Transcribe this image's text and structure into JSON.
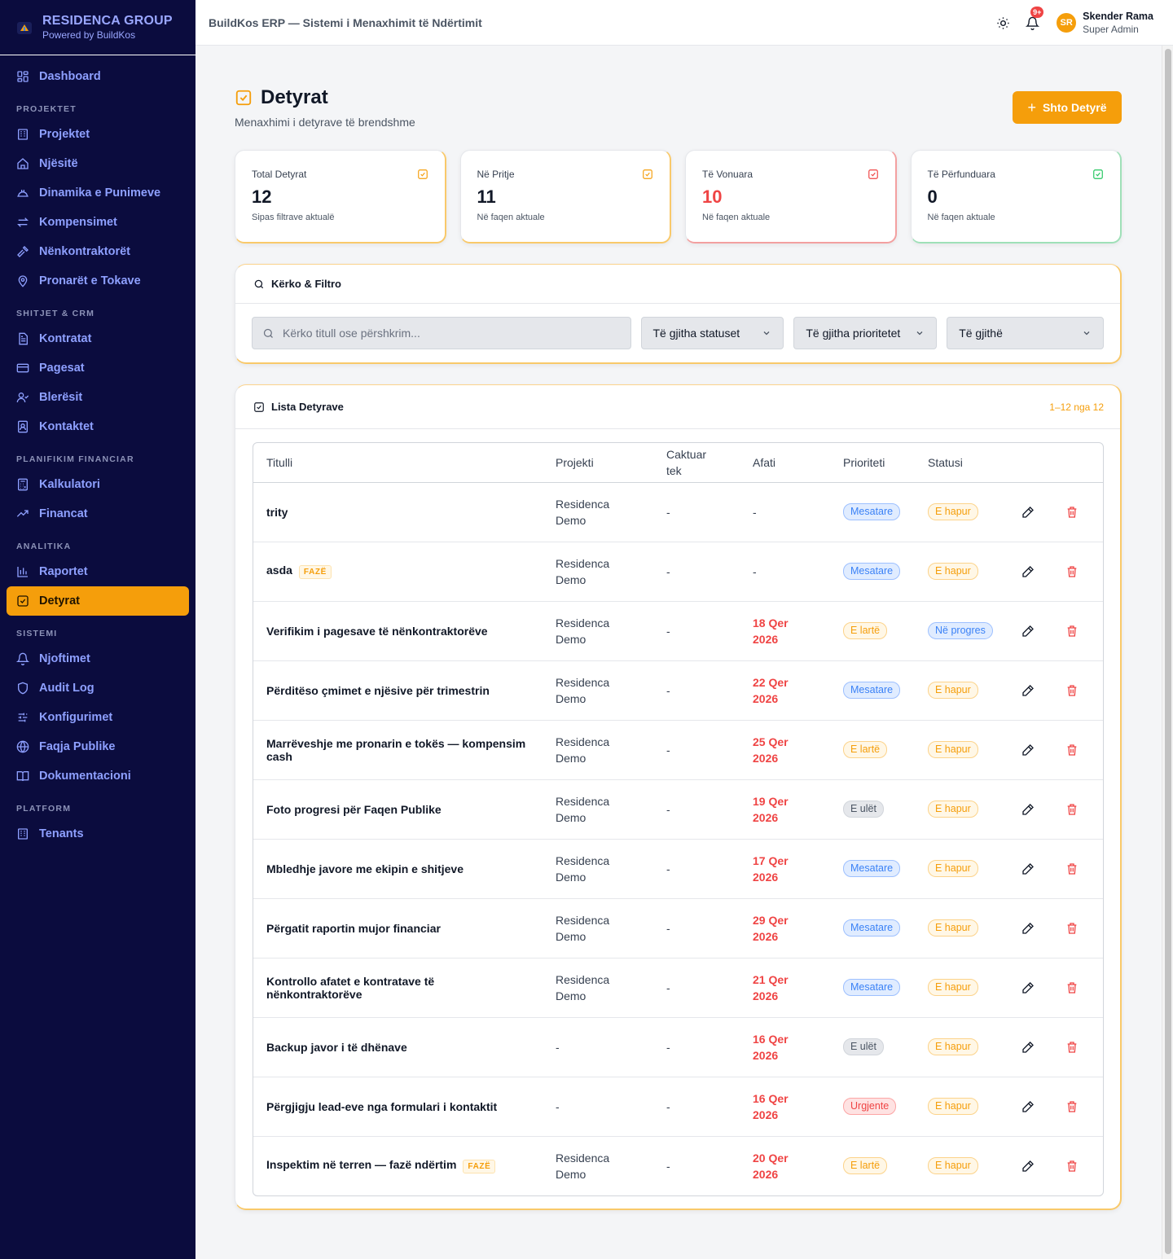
{
  "brand": {
    "name": "RESIDENCA GROUP",
    "sub": "Powered by BuildKos"
  },
  "sidebar": {
    "top": [
      {
        "label": "Dashboard",
        "icon": "grid-icon"
      }
    ],
    "sections": [
      {
        "title": "PROJEKTET",
        "items": [
          {
            "label": "Projektet",
            "icon": "building-icon"
          },
          {
            "label": "Njësitë",
            "icon": "home-icon"
          },
          {
            "label": "Dinamika e Punimeve",
            "icon": "hardhat-icon"
          },
          {
            "label": "Kompensimet",
            "icon": "arrows-icon"
          },
          {
            "label": "Nënkontraktorët",
            "icon": "hammer-icon"
          },
          {
            "label": "Pronarët e Tokave",
            "icon": "map-pin-icon"
          }
        ]
      },
      {
        "title": "SHITJET & CRM",
        "items": [
          {
            "label": "Kontratat",
            "icon": "document-icon"
          },
          {
            "label": "Pagesat",
            "icon": "card-icon"
          },
          {
            "label": "Blerësit",
            "icon": "user-check-icon"
          },
          {
            "label": "Kontaktet",
            "icon": "contact-icon"
          }
        ]
      },
      {
        "title": "PLANIFIKIM FINANCIAR",
        "items": [
          {
            "label": "Kalkulatori",
            "icon": "calculator-icon"
          },
          {
            "label": "Financat",
            "icon": "trend-icon"
          }
        ]
      },
      {
        "title": "ANALITIKA",
        "items": [
          {
            "label": "Raportet",
            "icon": "bar-chart-icon"
          },
          {
            "label": "Detyrat",
            "icon": "check-square-icon",
            "active": true
          }
        ]
      },
      {
        "title": "SISTEMI",
        "items": [
          {
            "label": "Njoftimet",
            "icon": "bell-icon"
          },
          {
            "label": "Audit Log",
            "icon": "shield-icon"
          },
          {
            "label": "Konfigurimet",
            "icon": "sliders-icon"
          },
          {
            "label": "Faqja Publike",
            "icon": "globe-icon"
          },
          {
            "label": "Dokumentacioni",
            "icon": "book-icon"
          }
        ]
      },
      {
        "title": "PLATFORM",
        "items": [
          {
            "label": "Tenants",
            "icon": "building-icon"
          }
        ]
      }
    ]
  },
  "header": {
    "title": "BuildKos ERP — Sistemi i Menaxhimit të Ndërtimit",
    "notif_count": "9+",
    "user_initials": "SR",
    "user_name": "Skender Rama",
    "user_role": "Super Admin"
  },
  "page": {
    "title": "Detyrat",
    "subtitle": "Menaxhimi i detyrave të brendshme",
    "add_button": "Shto Detyrë"
  },
  "stats": [
    {
      "label": "Total Detyrat",
      "value": "12",
      "hint": "Sipas filtrave aktualë",
      "color": "#f59e0b"
    },
    {
      "label": "Në Pritje",
      "value": "11",
      "hint": "Në faqen aktuale",
      "color": "#f59e0b"
    },
    {
      "label": "Të Vonuara",
      "value": "10",
      "hint": "Në faqen aktuale",
      "color": "#ef4444"
    },
    {
      "label": "Të Përfunduara",
      "value": "0",
      "hint": "Në faqen aktuale",
      "color": "#22c55e"
    }
  ],
  "filters": {
    "title": "Kërko & Filtro",
    "search_placeholder": "Kërko titull ose përshkrim...",
    "status": "Të gjitha statuset",
    "priority": "Të gjitha prioritetet",
    "assignee": "Të gjithë"
  },
  "list": {
    "title": "Lista Detyrave",
    "count": "1–12 nga 12",
    "columns": [
      "Titulli",
      "Projekti",
      "Caktuar tek",
      "Afati",
      "Prioriteti",
      "Statusi"
    ],
    "rows": [
      {
        "title": "trity",
        "tag": "",
        "project": "Residenca Demo",
        "assignee": "-",
        "due": "-",
        "priority": "Mesatare",
        "status": "E hapur"
      },
      {
        "title": "asda",
        "tag": "FAZË",
        "project": "Residenca Demo",
        "assignee": "-",
        "due": "-",
        "priority": "Mesatare",
        "status": "E hapur"
      },
      {
        "title": "Verifikim i pagesave të nënkontraktorëve",
        "tag": "",
        "project": "Residenca Demo",
        "assignee": "-",
        "due": "18 Qer 2026",
        "priority": "E lartë",
        "status": "Në progres"
      },
      {
        "title": "Përditëso çmimet e njësive për trimestrin",
        "tag": "",
        "project": "Residenca Demo",
        "assignee": "-",
        "due": "22 Qer 2026",
        "priority": "Mesatare",
        "status": "E hapur"
      },
      {
        "title": "Marrëveshje me pronarin e tokës — kompensim cash",
        "tag": "",
        "project": "Residenca Demo",
        "assignee": "-",
        "due": "25 Qer 2026",
        "priority": "E lartë",
        "status": "E hapur"
      },
      {
        "title": "Foto progresi për Faqen Publike",
        "tag": "",
        "project": "Residenca Demo",
        "assignee": "-",
        "due": "19 Qer 2026",
        "priority": "E ulët",
        "status": "E hapur"
      },
      {
        "title": "Mbledhje javore me ekipin e shitjeve",
        "tag": "",
        "project": "Residenca Demo",
        "assignee": "-",
        "due": "17 Qer 2026",
        "priority": "Mesatare",
        "status": "E hapur"
      },
      {
        "title": "Përgatit raportin mujor financiar",
        "tag": "",
        "project": "Residenca Demo",
        "assignee": "-",
        "due": "29 Qer 2026",
        "priority": "Mesatare",
        "status": "E hapur"
      },
      {
        "title": "Kontrollo afatet e kontratave të nënkontraktorëve",
        "tag": "",
        "project": "Residenca Demo",
        "assignee": "-",
        "due": "21 Qer 2026",
        "priority": "Mesatare",
        "status": "E hapur"
      },
      {
        "title": "Backup javor i të dhënave",
        "tag": "",
        "project": "-",
        "assignee": "-",
        "due": "16 Qer 2026",
        "priority": "E ulët",
        "status": "E hapur"
      },
      {
        "title": "Përgjigju lead-eve nga formulari i kontaktit",
        "tag": "",
        "project": "-",
        "assignee": "-",
        "due": "16 Qer 2026",
        "priority": "Urgjente",
        "status": "E hapur"
      },
      {
        "title": "Inspektim në terren — fazë ndërtim",
        "tag": "FAZË",
        "project": "Residenca Demo",
        "assignee": "-",
        "due": "20 Qer 2026",
        "priority": "E lartë",
        "status": "E hapur"
      }
    ]
  }
}
